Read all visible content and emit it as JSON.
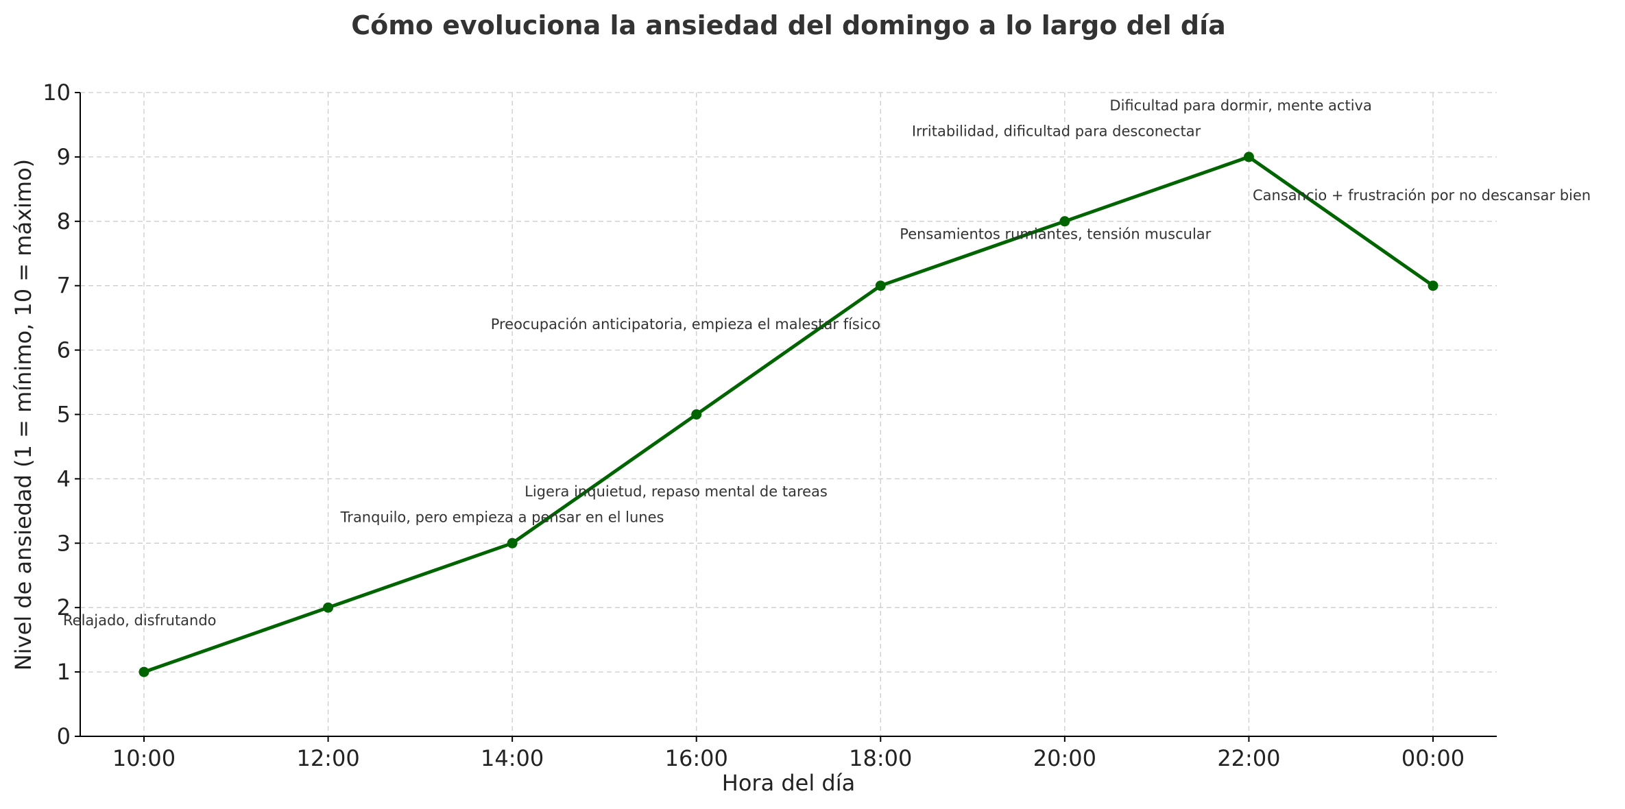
{
  "chart_data": {
    "type": "line",
    "title": "Cómo evoluciona la ansiedad del domingo a lo largo del día",
    "xlabel": "Hora del día",
    "ylabel": "Nivel de ansiedad (1 = mínimo, 10 = máximo)",
    "x": [
      "10:00",
      "12:00",
      "14:00",
      "16:00",
      "18:00",
      "20:00",
      "22:00",
      "00:00"
    ],
    "series": [
      {
        "values": [
          1,
          2,
          3,
          5,
          7,
          8,
          9,
          7
        ],
        "color": "#006400",
        "marker": "circle"
      }
    ],
    "ylim": [
      0,
      10
    ],
    "yticks": [
      0,
      1,
      2,
      3,
      4,
      5,
      6,
      7,
      8,
      9,
      10
    ],
    "grid": true,
    "annotations": [
      {
        "text": "Relajado, disfrutando",
        "x": "10:00",
        "y": 1.8
      },
      {
        "text": "Tranquilo, pero empieza a pensar en el lunes",
        "x": "12:00",
        "y": 3.4
      },
      {
        "text": "Ligera inquietud, repaso mental de tareas",
        "x": "14:00",
        "y": 3.8
      },
      {
        "text": "Preocupación anticipatoria, empieza el malestar físico",
        "x": "16:00",
        "y": 6.4
      },
      {
        "text": "Pensamientos rumiantes, tensión muscular",
        "x": "18:00",
        "y": 7.8
      },
      {
        "text": "Irritabilidad, dificultad para desconectar",
        "x": "20:00",
        "y": 9.4
      },
      {
        "text": "Dificultad para dormir, mente activa",
        "x": "22:00",
        "y": 9.8
      },
      {
        "text": "Cansancio + frustración por no descansar bien",
        "x": "00:00",
        "y": 8.4
      }
    ]
  }
}
